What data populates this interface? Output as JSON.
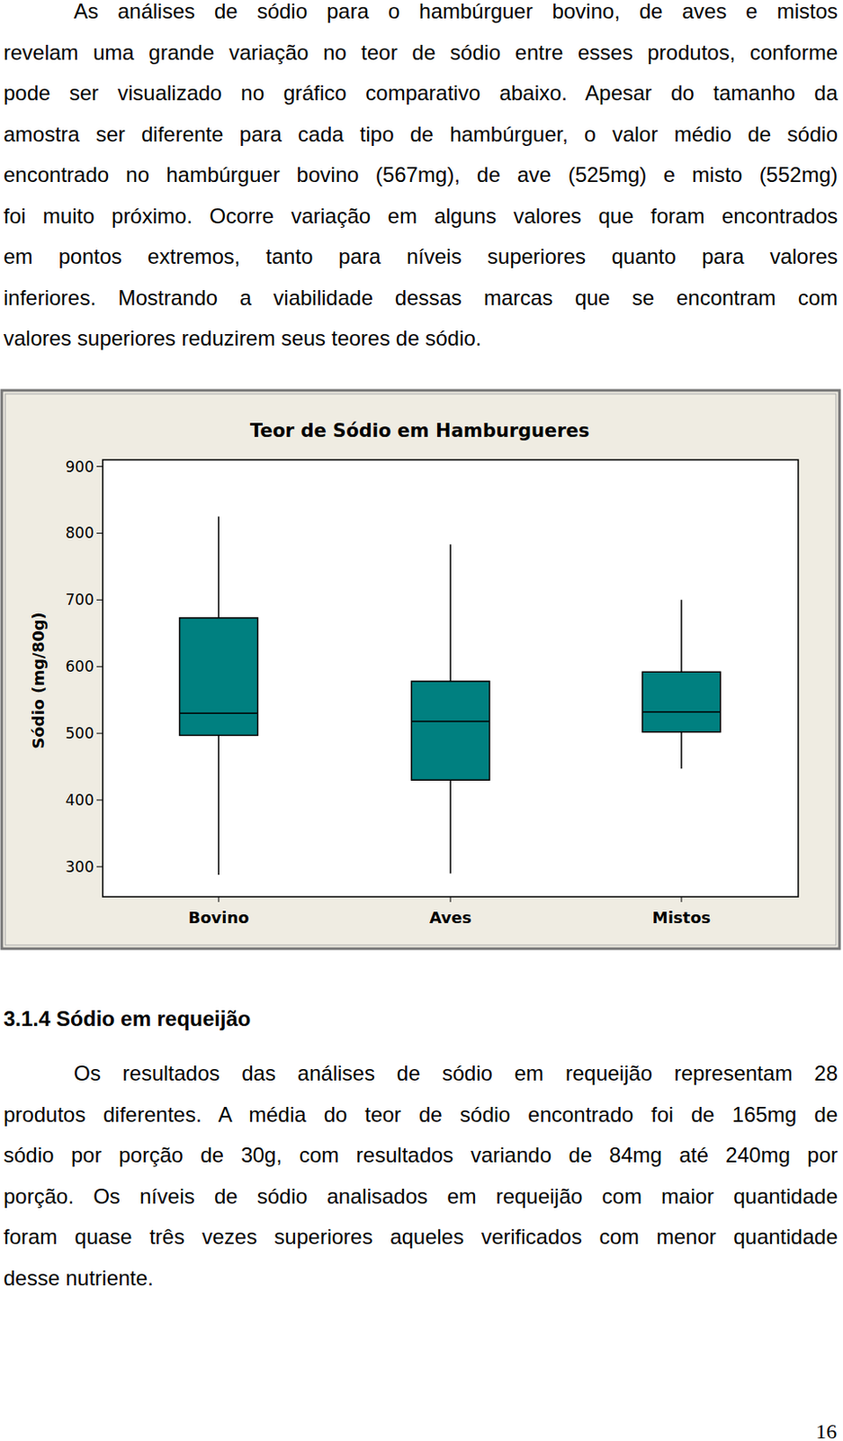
{
  "body": {
    "paragraph_1": [
      "As análises de sódio para o hambúrguer bovino, de aves e mistos",
      "revelam uma grande variação no teor de sódio entre esses produtos, conforme",
      "pode ser visualizado no gráfico comparativo abaixo. Apesar do tamanho da",
      "amostra ser diferente para cada tipo de hambúrguer, o valor médio de sódio",
      "encontrado no hambúrguer bovino (567mg), de ave (525mg) e misto (552mg)",
      "foi muito próximo. Ocorre variação em alguns valores que foram encontrados",
      "em pontos extremos, tanto para níveis superiores quanto para valores",
      "inferiores. Mostrando a viabilidade dessas marcas que se encontram com",
      "valores superiores reduzirem seus teores de sódio."
    ],
    "heading": "3.1.4 Sódio em requeijão",
    "paragraph_2": [
      "Os resultados das análises de sódio em requeijão representam 28",
      "produtos diferentes. A média do teor de sódio encontrado foi de 165mg de",
      "sódio por porção de 30g, com resultados variando de 84mg até 240mg por",
      "porção. Os níveis de sódio analisados em requeijão com maior quantidade",
      "foram quase três vezes superiores aqueles verificados com menor quantidade",
      "desse nutriente."
    ],
    "page_number": "16"
  },
  "chart_data": {
    "type": "box",
    "title": "Teor de Sódio em Hamburgueres",
    "y_label": "Sódio (mg/80g)",
    "categories": [
      "Bovino",
      "Aves",
      "Mistos"
    ],
    "min": [
      288,
      290,
      447
    ],
    "q1": [
      497,
      430,
      502
    ],
    "median": [
      530,
      518,
      532
    ],
    "q3": [
      673,
      578,
      592
    ],
    "max": [
      825,
      783,
      700
    ],
    "color": "#008080",
    "ylim": [
      255,
      910
    ],
    "yticks": [
      300,
      400,
      500,
      600,
      700,
      800,
      900
    ]
  }
}
